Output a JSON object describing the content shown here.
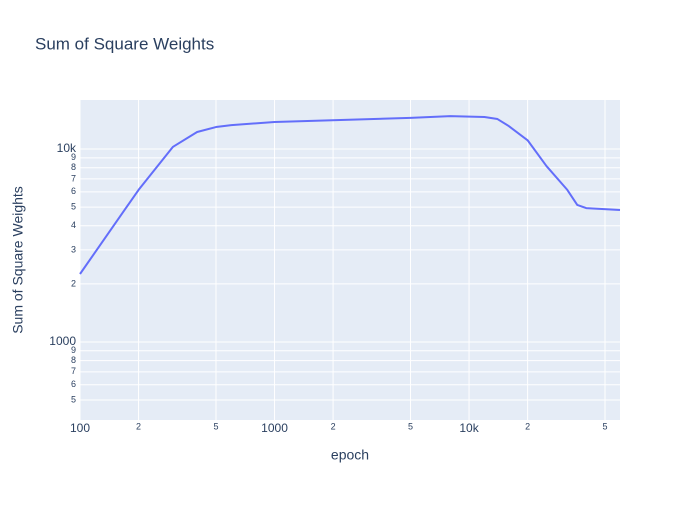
{
  "chart_data": {
    "type": "line",
    "title": "Sum of Square Weights",
    "x_label": "epoch",
    "y_label": "Sum of Square Weights",
    "xscale": "log",
    "yscale": "log",
    "grid": true,
    "x": [
      100,
      200,
      300,
      400,
      500,
      600,
      1000,
      5000,
      8000,
      12000,
      14000,
      16000,
      20000,
      25000,
      32000,
      36000,
      40000,
      59700
    ],
    "series": [
      {
        "name": "Sum of Square Weights",
        "color": "#636efa",
        "values": [
          2250,
          6140,
          10250,
          12250,
          13000,
          13300,
          13800,
          14500,
          14800,
          14650,
          14300,
          13150,
          11100,
          8160,
          6140,
          5130,
          4940,
          4830
        ]
      }
    ],
    "xlim": [
      100,
      59700
    ],
    "ylim": [
      394,
      17950
    ],
    "xticks": [
      100,
      {
        "value": 200,
        "label": "2"
      },
      {
        "value": 500,
        "label": "5"
      },
      1000,
      {
        "value": 2000,
        "label": "2"
      },
      {
        "value": 5000,
        "label": "5"
      },
      {
        "value": 10000,
        "label": "10k"
      },
      {
        "value": 20000,
        "label": "2"
      },
      {
        "value": 50000,
        "label": "5"
      }
    ],
    "yticks": [
      {
        "value": 500,
        "label": "5"
      },
      {
        "value": 600,
        "label": "6"
      },
      {
        "value": 700,
        "label": "7"
      },
      {
        "value": 800,
        "label": "8"
      },
      {
        "value": 900,
        "label": "9"
      },
      1000,
      {
        "value": 2000,
        "label": "2"
      },
      {
        "value": 3000,
        "label": "3"
      },
      {
        "value": 4000,
        "label": "4"
      },
      {
        "value": 5000,
        "label": "5"
      },
      {
        "value": 6000,
        "label": "6"
      },
      {
        "value": 7000,
        "label": "7"
      },
      {
        "value": 8000,
        "label": "8"
      },
      {
        "value": 9000,
        "label": "9"
      },
      {
        "value": 10000,
        "label": "10k"
      }
    ]
  }
}
